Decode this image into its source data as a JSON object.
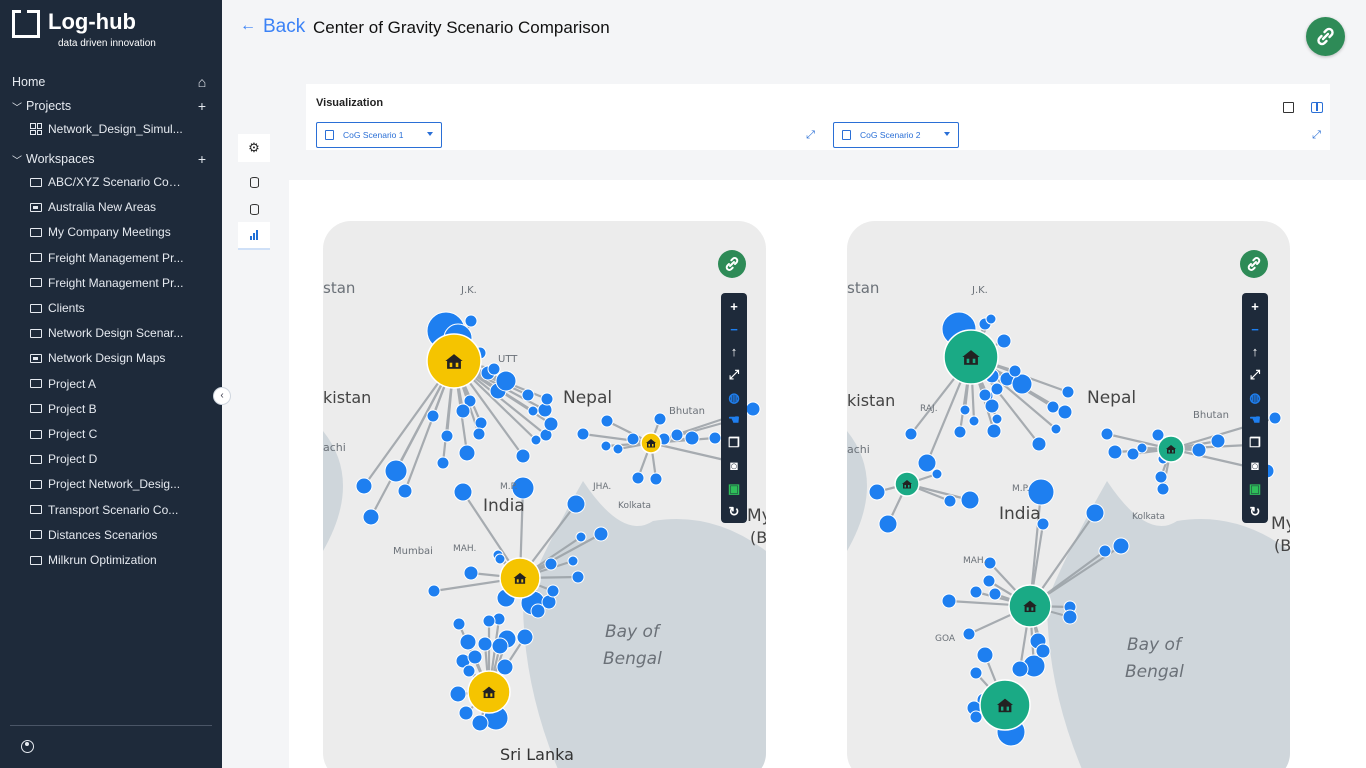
{
  "app": {
    "name": "Log-hub",
    "tagline": "data driven innovation"
  },
  "sidebar": {
    "home_label": "Home",
    "projects_label": "Projects",
    "projects": [
      {
        "label": "Network_Design_Simul..."
      }
    ],
    "workspaces_label": "Workspaces",
    "workspaces": [
      {
        "label": "ABC/XYZ Scenario Com...",
        "icon": "folder-icon"
      },
      {
        "label": "Australia New Areas",
        "icon": "folder-filled-icon"
      },
      {
        "label": "My Company Meetings",
        "icon": "folder-icon"
      },
      {
        "label": "Freight Management Pr...",
        "icon": "folder-icon"
      },
      {
        "label": "Freight Management Pr...",
        "icon": "folder-icon"
      },
      {
        "label": "Clients",
        "icon": "folder-icon"
      },
      {
        "label": "Network Design Scenar...",
        "icon": "folder-icon"
      },
      {
        "label": "Network Design Maps",
        "icon": "folder-filled-icon"
      },
      {
        "label": "Project A",
        "icon": "folder-icon"
      },
      {
        "label": "Project B",
        "icon": "folder-icon"
      },
      {
        "label": "Project C",
        "icon": "folder-icon"
      },
      {
        "label": "Project D",
        "icon": "folder-icon"
      },
      {
        "label": "Project Network_Desig...",
        "icon": "folder-icon"
      },
      {
        "label": "Transport Scenario Co...",
        "icon": "folder-icon"
      },
      {
        "label": "Distances Scenarios",
        "icon": "folder-icon"
      },
      {
        "label": "Milkrun Optimization",
        "icon": "folder-icon"
      }
    ]
  },
  "header": {
    "back_label": "Back",
    "title": "Center of Gravity Scenario Comparison"
  },
  "visualization": {
    "title": "Visualization",
    "left_scenario": "CoG Scenario 1",
    "right_scenario": "CoG Scenario 2"
  },
  "maps": {
    "place_labels": {
      "stan": "stan",
      "jk": "J.K.",
      "utt": "UTT",
      "nepal": "Nepal",
      "pakistan": "kistan",
      "bhutan": "Bhutan",
      "raj": "RAJ.",
      "achi": "achi",
      "india": "India",
      "mp": "M.P.",
      "jha": "JHA.",
      "kolkata": "Kolkata",
      "my": "My",
      "b": "(B",
      "mumbai": "Mumbai",
      "mah": "MAH.",
      "goa": "GOA",
      "bay1": "Bay of",
      "bay2": "Bengal",
      "srilanka": "Sri Lanka"
    },
    "colors": {
      "scenario1_center": "#f5c400",
      "scenario2_center": "#1aaa85",
      "customer": "#1e7ff0"
    }
  }
}
